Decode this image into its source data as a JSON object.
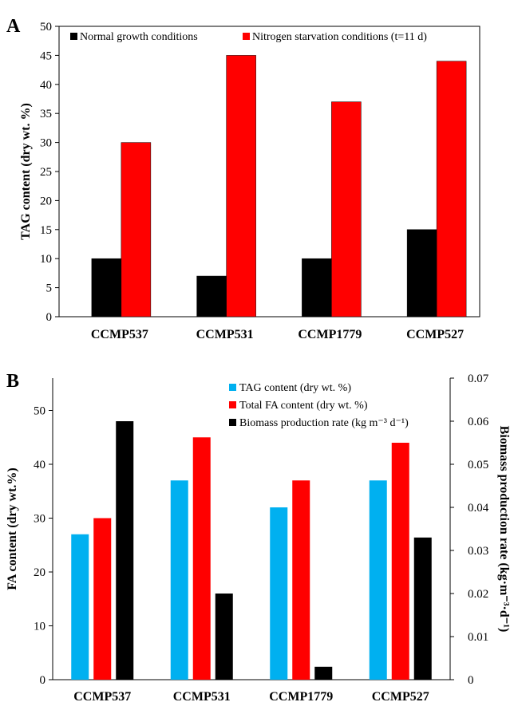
{
  "chart_data": [
    {
      "panel": "A",
      "type": "bar",
      "categories": [
        "CCMP537",
        "CCMP531",
        "CCMP1779",
        "CCMP527"
      ],
      "series": [
        {
          "name": "Normal growth conditions",
          "color": "#000000",
          "values": [
            10,
            7,
            10,
            15
          ]
        },
        {
          "name": "Nitrogen starvation conditions (t=11 d)",
          "color": "#ff0000",
          "values": [
            30,
            45,
            37,
            44
          ]
        }
      ],
      "ylabel": "TAG content (dry wt. %)",
      "ylim": [
        0,
        50
      ],
      "yticks": [
        0,
        5,
        10,
        15,
        20,
        25,
        30,
        35,
        40,
        45,
        50
      ],
      "legend": "top"
    },
    {
      "panel": "B",
      "type": "bar",
      "categories": [
        "CCMP537",
        "CCMP531",
        "CCMP1779",
        "CCMP527"
      ],
      "series": [
        {
          "name": "TAG content (dry wt. %)",
          "color": "#00b0f0",
          "axis": "left",
          "values": [
            27,
            37,
            32,
            37
          ]
        },
        {
          "name": "Total FA content (dry wt. %)",
          "color": "#ff0000",
          "axis": "left",
          "values": [
            30,
            45,
            37,
            44
          ]
        },
        {
          "name": "Biomass production rate (kg m⁻³ d⁻¹)",
          "color": "#000000",
          "axis": "right",
          "values": [
            0.06,
            0.02,
            0.003,
            0.033
          ]
        }
      ],
      "ylabel": "FA content (dry wt.%)",
      "ylim": [
        0,
        56
      ],
      "yticks": [
        0,
        10,
        20,
        30,
        40,
        50
      ],
      "y2label": "Biomass production rate (kg·m⁻³·d⁻¹)",
      "y2lim": [
        0,
        0.07
      ],
      "y2ticks": [
        "0",
        "0.01",
        "0.02",
        "0.03",
        "0.04",
        "0.05",
        "0.06",
        "0.07"
      ],
      "legend": "top-right"
    }
  ]
}
